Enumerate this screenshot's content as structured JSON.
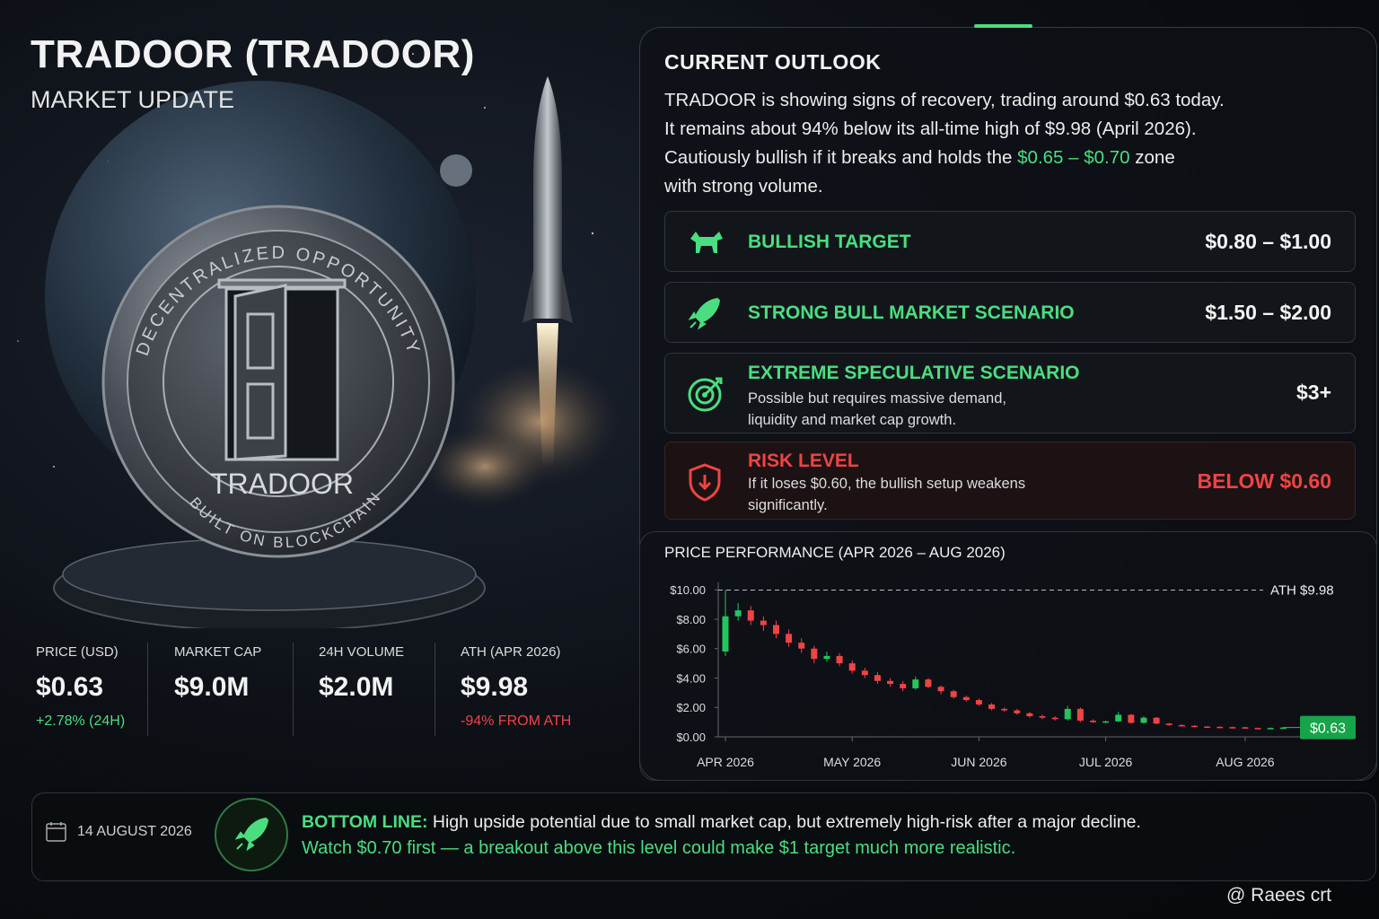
{
  "header": {
    "title": "TRADOOR (TRADOOR)",
    "subtitle": "MARKET UPDATE"
  },
  "coin": {
    "top_text": "DECENTRALIZED OPPORTUNITY",
    "name": "TRADOOR",
    "bottom_text": "BUILT ON BLOCKCHAIN"
  },
  "stats": [
    {
      "label": "PRICE (USD)",
      "value": "$0.63",
      "note": "+2.78% (24H)"
    },
    {
      "label": "MARKET CAP",
      "value": "$9.0M"
    },
    {
      "label": "24H VOLUME",
      "value": "$2.0M"
    },
    {
      "label": "ATH (APR 2026)",
      "value": "$9.98",
      "note": "-94% FROM ATH"
    }
  ],
  "outlook": {
    "title": "CURRENT OUTLOOK",
    "line_1": "TRADOOR is showing signs of recovery, trading around $0.63 today.",
    "line_2": "It remains about 94% below its all-time high of $9.98 (April 2026).",
    "line_3_before": "Cautiously bullish if it breaks and holds the",
    "line_3_highlight": "$0.65 – $0.70",
    "line_3_after": "zone",
    "line_4": "with strong volume."
  },
  "scenarios": [
    {
      "title": "BULLISH TARGET",
      "value": "$0.80 – $1.00"
    },
    {
      "title": "STRONG BULL MARKET SCENARIO",
      "value": "$1.50 – $2.00"
    },
    {
      "title": "EXTREME SPECULATIVE SCENARIO",
      "description": "Possible but requires massive demand, liquidity and market cap growth.",
      "value": "$3+"
    },
    {
      "title": "RISK LEVEL",
      "description": "If it loses $0.60, the bullish setup weakens significantly.",
      "value": "BELOW $0.60"
    }
  ],
  "chart_data": {
    "type": "candlestick",
    "title": "PRICE PERFORMANCE (APR 2026 – AUG 2026)",
    "categories": [
      "APR 2026",
      null,
      null,
      null,
      null,
      null,
      null,
      null,
      null,
      null,
      "MAY 2026",
      null,
      null,
      null,
      null,
      null,
      null,
      null,
      null,
      null,
      "JUN 2026",
      null,
      null,
      null,
      null,
      null,
      null,
      null,
      null,
      null,
      "JUL 2026",
      null,
      null,
      null,
      null,
      null,
      null,
      null,
      null,
      null,
      null,
      "AUG 2026",
      null,
      null,
      null
    ],
    "open": [
      5.8,
      8.2,
      8.6,
      7.9,
      7.6,
      7.0,
      6.4,
      6.0,
      5.3,
      5.5,
      5.0,
      4.5,
      4.2,
      3.8,
      3.6,
      3.3,
      3.9,
      3.4,
      3.1,
      2.7,
      2.5,
      2.2,
      1.9,
      1.8,
      1.6,
      1.4,
      1.3,
      1.2,
      1.9,
      1.1,
      1.0,
      1.05,
      1.5,
      0.95,
      1.3,
      0.9,
      0.8,
      0.75,
      0.7,
      0.68,
      0.66,
      0.65,
      0.6,
      0.58,
      0.6
    ],
    "high": [
      10.0,
      9.1,
      8.9,
      8.2,
      7.9,
      7.3,
      6.7,
      6.2,
      5.8,
      5.7,
      5.2,
      4.7,
      4.4,
      4.0,
      3.8,
      4.1,
      4.0,
      3.5,
      3.2,
      2.8,
      2.6,
      2.3,
      2.0,
      1.9,
      1.7,
      1.5,
      1.4,
      2.1,
      2.0,
      1.2,
      1.1,
      1.7,
      1.55,
      1.4,
      1.35,
      0.95,
      0.85,
      0.8,
      0.74,
      0.72,
      0.7,
      0.68,
      0.63,
      0.64,
      0.66
    ],
    "low": [
      5.5,
      7.9,
      7.6,
      7.2,
      6.7,
      6.1,
      5.7,
      5.0,
      5.1,
      4.8,
      4.3,
      4.0,
      3.6,
      3.4,
      3.1,
      3.2,
      3.3,
      2.9,
      2.6,
      2.4,
      2.1,
      1.8,
      1.7,
      1.5,
      1.3,
      1.2,
      1.1,
      1.1,
      1.0,
      0.95,
      0.95,
      1.0,
      0.9,
      0.9,
      0.85,
      0.75,
      0.7,
      0.66,
      0.64,
      0.62,
      0.61,
      0.57,
      0.55,
      0.56,
      0.58
    ],
    "close": [
      8.2,
      8.6,
      7.9,
      7.6,
      7.0,
      6.4,
      6.0,
      5.3,
      5.5,
      5.0,
      4.5,
      4.2,
      3.8,
      3.6,
      3.3,
      3.9,
      3.4,
      3.1,
      2.7,
      2.5,
      2.2,
      1.9,
      1.8,
      1.6,
      1.4,
      1.3,
      1.2,
      1.9,
      1.1,
      1.0,
      1.05,
      1.5,
      0.95,
      1.3,
      0.9,
      0.8,
      0.75,
      0.7,
      0.68,
      0.66,
      0.65,
      0.6,
      0.58,
      0.6,
      0.63
    ],
    "up_color": "#22c55e",
    "down_color": "#ef4444",
    "ylim": [
      0,
      10.5
    ],
    "yticks": [
      {
        "value": 0,
        "label": "$0.00"
      },
      {
        "value": 2,
        "label": "$2.00"
      },
      {
        "value": 4,
        "label": "$4.00"
      },
      {
        "value": 6,
        "label": "$6.00"
      },
      {
        "value": 8,
        "label": "$8.00"
      },
      {
        "value": 10,
        "label": "$10.00"
      }
    ],
    "ath": {
      "value": 9.98,
      "label": "ATH $9.98"
    },
    "last_price": {
      "value": 0.63,
      "label": "$0.63"
    }
  },
  "bottom": {
    "date": "14 AUGUST 2026",
    "label": "BOTTOM LINE:",
    "text": "High upside potential due to small market cap, but extremely high-risk after a major decline.",
    "highlight": "Watch $0.70 first — a breakout above this level could make $1 target much more realistic."
  },
  "watermark": "@ Raees crt"
}
